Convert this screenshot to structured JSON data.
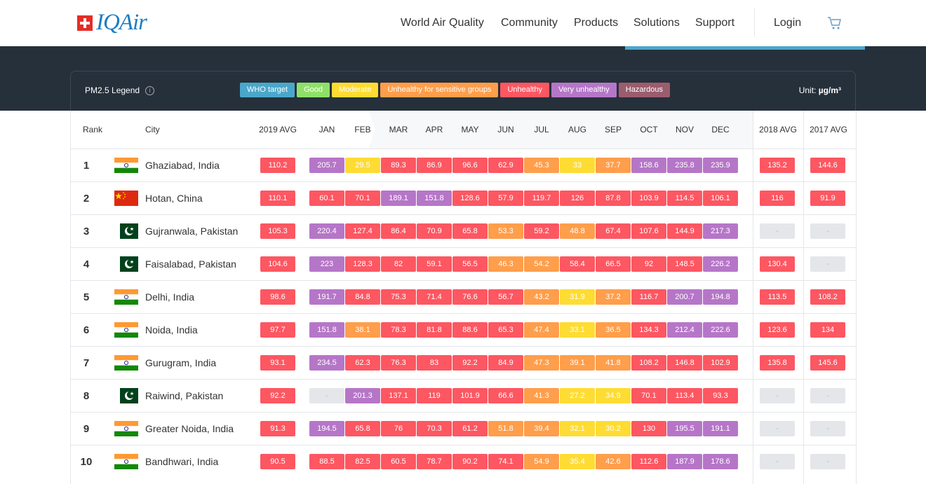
{
  "nav": {
    "logo": "IQAir",
    "items": [
      "World Air Quality",
      "Community",
      "Products",
      "Solutions",
      "Support"
    ],
    "login": "Login"
  },
  "legend": {
    "title": "PM2.5 Legend",
    "chips": [
      "WHO target",
      "Good",
      "Moderate",
      "Unhealthy for sensitive groups",
      "Unhealthy",
      "Very unhealthy",
      "Hazardous"
    ],
    "unit_label": "Unit:",
    "unit_value": "µg/m³"
  },
  "colors": {
    "who": "#4aa7cb",
    "good": "#8fe069",
    "moderate": "#fedc33",
    "usg": "#ff9e4b",
    "unhealthy": "#fd5762",
    "very_unhealthy": "#b676c8",
    "hazardous": "#9b5c6e"
  },
  "table": {
    "headers": [
      "Rank",
      "City",
      "2019 AVG",
      "JAN",
      "FEB",
      "MAR",
      "APR",
      "MAY",
      "JUN",
      "JUL",
      "AUG",
      "SEP",
      "OCT",
      "NOV",
      "DEC",
      "2018 AVG",
      "2017 AVG"
    ],
    "rows": [
      {
        "rank": "1",
        "city": "Ghaziabad, India",
        "flag": "india",
        "avg2019": "110.2",
        "months": [
          "205.7",
          "29.5",
          "89.3",
          "86.9",
          "96.6",
          "62.9",
          "45.3",
          "33",
          "37.7",
          "158.6",
          "235.8",
          "235.9"
        ],
        "avg2018": "135.2",
        "avg2017": "144.6"
      },
      {
        "rank": "2",
        "city": "Hotan, China",
        "flag": "china",
        "avg2019": "110.1",
        "months": [
          "60.1",
          "70.1",
          "189.1",
          "151.8",
          "128.6",
          "57.9",
          "119.7",
          "126",
          "87.8",
          "103.9",
          "114.5",
          "106.1"
        ],
        "avg2018": "116",
        "avg2017": "91.9"
      },
      {
        "rank": "3",
        "city": "Gujranwala, Pakistan",
        "flag": "pakistan",
        "avg2019": "105.3",
        "months": [
          "220.4",
          "127.4",
          "86.4",
          "70.9",
          "65.8",
          "53.3",
          "59.2",
          "48.8",
          "67.4",
          "107.6",
          "144.9",
          "217.3"
        ],
        "avg2018": "-",
        "avg2017": "-"
      },
      {
        "rank": "4",
        "city": "Faisalabad, Pakistan",
        "flag": "pakistan",
        "avg2019": "104.6",
        "months": [
          "223",
          "128.3",
          "82",
          "59.1",
          "56.5",
          "46.3",
          "54.2",
          "58.4",
          "66.5",
          "92",
          "148.5",
          "226.2"
        ],
        "avg2018": "130.4",
        "avg2017": "-"
      },
      {
        "rank": "5",
        "city": "Delhi, India",
        "flag": "india",
        "avg2019": "98.6",
        "months": [
          "191.7",
          "84.8",
          "75.3",
          "71.4",
          "76.6",
          "56.7",
          "43.2",
          "31.9",
          "37.2",
          "116.7",
          "200.7",
          "194.8"
        ],
        "avg2018": "113.5",
        "avg2017": "108.2"
      },
      {
        "rank": "6",
        "city": "Noida, India",
        "flag": "india",
        "avg2019": "97.7",
        "months": [
          "151.8",
          "38.1",
          "78.3",
          "81.8",
          "88.6",
          "65.3",
          "47.4",
          "33.1",
          "36.5",
          "134.3",
          "212.4",
          "222.6"
        ],
        "avg2018": "123.6",
        "avg2017": "134"
      },
      {
        "rank": "7",
        "city": "Gurugram, India",
        "flag": "india",
        "avg2019": "93.1",
        "months": [
          "234.5",
          "62.3",
          "76.3",
          "83",
          "92.2",
          "84.9",
          "47.3",
          "39.1",
          "41.8",
          "108.2",
          "146.8",
          "102.9"
        ],
        "avg2018": "135.8",
        "avg2017": "145.6"
      },
      {
        "rank": "8",
        "city": "Raiwind, Pakistan",
        "flag": "pakistan",
        "avg2019": "92.2",
        "months": [
          "-",
          "201.3",
          "137.1",
          "119",
          "101.9",
          "66.6",
          "41.3",
          "27.2",
          "34.9",
          "70.1",
          "113.4",
          "93.3"
        ],
        "avg2018": "-",
        "avg2017": "-"
      },
      {
        "rank": "9",
        "city": "Greater Noida, India",
        "flag": "india",
        "avg2019": "91.3",
        "months": [
          "194.5",
          "65.8",
          "76",
          "70.3",
          "61.2",
          "51.8",
          "39.4",
          "32.1",
          "30.2",
          "130",
          "195.5",
          "191.1"
        ],
        "avg2018": "-",
        "avg2017": "-"
      },
      {
        "rank": "10",
        "city": "Bandhwari, India",
        "flag": "india",
        "avg2019": "90.5",
        "months": [
          "88.5",
          "82.5",
          "60.5",
          "78.7",
          "90.2",
          "74.1",
          "54.9",
          "35.4",
          "42.6",
          "112.6",
          "187.9",
          "178.6"
        ],
        "avg2018": "-",
        "avg2017": "-"
      }
    ]
  }
}
